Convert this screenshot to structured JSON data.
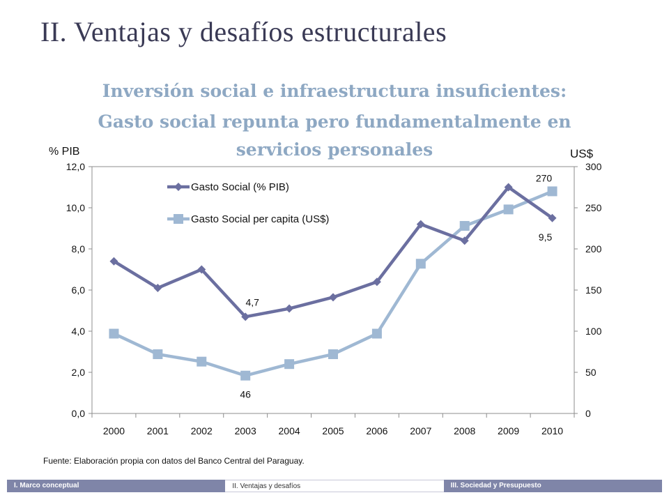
{
  "slide": {
    "title": "II. Ventajas y desafíos estructurales",
    "subtitle_line1": "Inversión social e infraestructura insuficientes:",
    "subtitle_line2": "Gasto social repunta pero fundamentalmente en",
    "subtitle_line3": "servicios personales",
    "source": "Fuente: Elaboración propia con datos del Banco Central del Paraguay."
  },
  "footer": {
    "items": [
      "I. Marco conceptual",
      "II. Ventajas y desafíos",
      "III. Sociedad y Presupuesto"
    ],
    "active_index": 1
  },
  "colors": {
    "series1": "#6b6fa0",
    "series2": "#9fb8d3",
    "title": "#3a3a55",
    "subtitle": "#8ea8c3",
    "footer": "#7f85a8"
  },
  "chart_data": {
    "type": "line",
    "categories": [
      "2000",
      "2001",
      "2002",
      "2003",
      "2004",
      "2005",
      "2006",
      "2007",
      "2008",
      "2009",
      "2010"
    ],
    "series": [
      {
        "name": "Gasto Social (% PIB)",
        "axis": "left",
        "marker": "diamond",
        "values": [
          7.4,
          6.1,
          7.0,
          4.7,
          5.1,
          5.65,
          6.4,
          9.2,
          8.4,
          11.0,
          9.5
        ]
      },
      {
        "name": "Gasto Social per capita (US$)",
        "axis": "right",
        "marker": "square",
        "values": [
          97,
          72,
          63,
          46,
          60,
          72,
          97,
          182,
          228,
          248,
          270
        ]
      }
    ],
    "ylabel_left": "% PIB",
    "ylabel_right": "US$",
    "ylim_left": [
      0,
      12
    ],
    "ylim_right": [
      0,
      300
    ],
    "yticks_left": [
      "0,0",
      "2,0",
      "4,0",
      "6,0",
      "8,0",
      "10,0",
      "12,0"
    ],
    "yticks_right": [
      "0",
      "50",
      "100",
      "150",
      "200",
      "250",
      "300"
    ],
    "annotations": [
      {
        "series": 0,
        "index": 3,
        "text": "4,7",
        "placement": "above"
      },
      {
        "series": 0,
        "index": 10,
        "text": "9,5",
        "placement": "below-left"
      },
      {
        "series": 1,
        "index": 3,
        "text": "46",
        "placement": "below"
      },
      {
        "series": 1,
        "index": 10,
        "text": "270",
        "placement": "above-left"
      }
    ],
    "grid": false,
    "legend_position": "top-left"
  }
}
